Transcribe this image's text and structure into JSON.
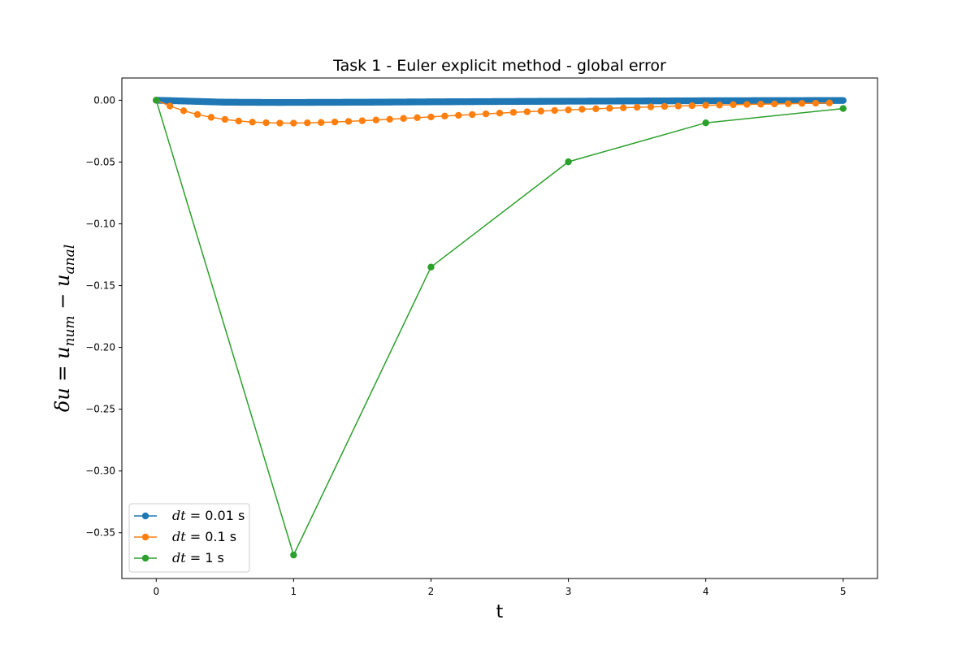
{
  "chart_data": {
    "type": "line",
    "title": "Task 1 - Euler explicit method - global error",
    "xlabel": "t",
    "ylabel": {
      "main": "δu = u",
      "sub1": "num",
      "mid": " − u",
      "sub2": "anal"
    },
    "xlim": [
      -0.25,
      5.25
    ],
    "ylim": [
      -0.387,
      0.018
    ],
    "xticks": [
      0,
      1,
      2,
      3,
      4,
      5
    ],
    "xtick_labels": [
      "0",
      "1",
      "2",
      "3",
      "4",
      "5"
    ],
    "yticks": [
      0.0,
      -0.05,
      -0.1,
      -0.15,
      -0.2,
      -0.25,
      -0.3,
      -0.35
    ],
    "ytick_labels": [
      "0.00",
      "−0.05",
      "−0.10",
      "−0.15",
      "−0.20",
      "−0.25",
      "−0.30",
      "−0.35"
    ],
    "grid": false,
    "legend_position": "lower-left",
    "series": [
      {
        "name": "dt = 0.01 s",
        "legend_math": "dt",
        "legend_suffix": " = 0.01 s",
        "color": "#1f77b4",
        "x_start": 0,
        "x_end": 5,
        "dt": 0.01,
        "x_anchor": [
          0,
          0.5,
          0.9,
          1.5,
          2.0,
          3.0,
          4.0,
          5.0
        ],
        "y_anchor": [
          0,
          -0.0016,
          -0.0018,
          -0.0016,
          -0.0013,
          -0.0008,
          -0.0004,
          -0.0002
        ]
      },
      {
        "name": "dt = 0.1 s",
        "legend_math": "dt",
        "legend_suffix": " = 0.1 s",
        "color": "#ff7f0e",
        "x": [
          0.0,
          0.1,
          0.2,
          0.3,
          0.4,
          0.5,
          0.6,
          0.7,
          0.8,
          0.9,
          1.0,
          1.1,
          1.2,
          1.3,
          1.4,
          1.5,
          1.6,
          1.7,
          1.8,
          1.9,
          2.0,
          2.1,
          2.2,
          2.3,
          2.4,
          2.5,
          2.6,
          2.7,
          2.8,
          2.9,
          3.0,
          3.1,
          3.2,
          3.3,
          3.4,
          3.5,
          3.6,
          3.7,
          3.8,
          3.9,
          4.0,
          4.1,
          4.2,
          4.3,
          4.4,
          4.5,
          4.6,
          4.7,
          4.8,
          4.9
        ],
        "y": [
          0.0,
          -0.0047,
          -0.0085,
          -0.0115,
          -0.0138,
          -0.0155,
          -0.0168,
          -0.0177,
          -0.0182,
          -0.0185,
          -0.0185,
          -0.0183,
          -0.018,
          -0.0176,
          -0.0171,
          -0.0166,
          -0.016,
          -0.0154,
          -0.0147,
          -0.0141,
          -0.0135,
          -0.0128,
          -0.0122,
          -0.0116,
          -0.011,
          -0.0104,
          -0.0098,
          -0.0093,
          -0.0088,
          -0.0083,
          -0.0078,
          -0.0073,
          -0.0069,
          -0.0065,
          -0.0061,
          -0.0057,
          -0.0054,
          -0.005,
          -0.0047,
          -0.0044,
          -0.0041,
          -0.0039,
          -0.0036,
          -0.0034,
          -0.0032,
          -0.003,
          -0.0028,
          -0.0026,
          -0.0024,
          -0.0022
        ]
      },
      {
        "name": "dt = 1 s",
        "legend_math": "dt",
        "legend_suffix": " = 1 s",
        "color": "#2ca02c",
        "x": [
          0,
          1,
          2,
          3,
          4,
          5
        ],
        "y": [
          0.0,
          -0.368,
          -0.135,
          -0.0498,
          -0.0183,
          -0.0067
        ]
      }
    ]
  }
}
